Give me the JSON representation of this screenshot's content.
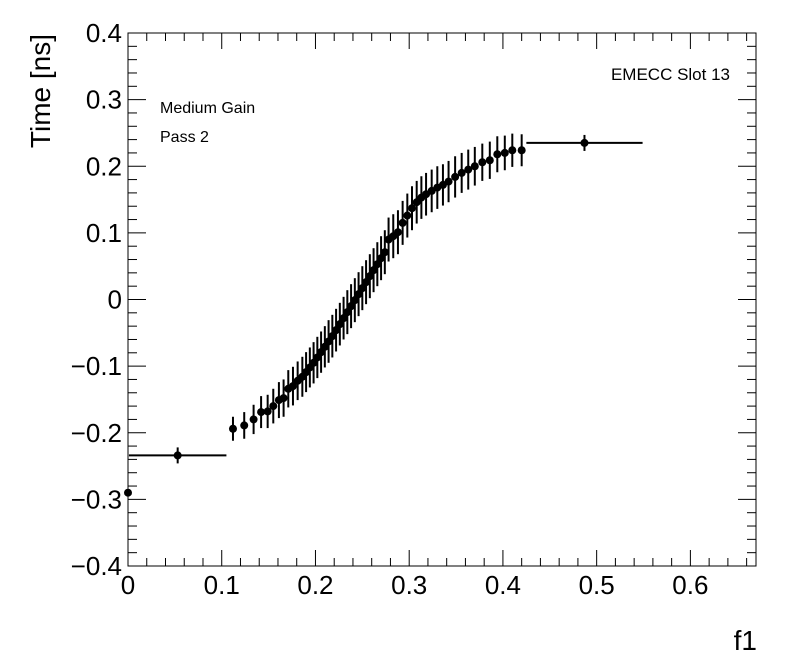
{
  "chart_data": {
    "type": "scatter",
    "title": "EMECC Slot 13",
    "xlabel": "f1",
    "ylabel": "Time [ns]",
    "xlim": [
      0,
      0.67
    ],
    "ylim": [
      -0.4,
      0.4
    ],
    "xticks": [
      0,
      0.1,
      0.2,
      0.3,
      0.4,
      0.5,
      0.6
    ],
    "xtick_labels": [
      "0",
      "0.1",
      "0.2",
      "0.3",
      "0.4",
      "0.5",
      "0.6"
    ],
    "yticks": [
      -0.4,
      -0.3,
      -0.2,
      -0.1,
      0,
      0.1,
      0.2,
      0.3,
      0.4
    ],
    "ytick_labels": [
      "−0.4",
      "−0.3",
      "−0.2",
      "−0.1",
      "0",
      "0.1",
      "0.2",
      "0.3",
      "0.4"
    ],
    "annotations": [
      "Medium Gain",
      "Pass 2"
    ],
    "series": [
      {
        "name": "Medium Gain Pass 2",
        "points": [
          {
            "x": 0.0,
            "y": -0.29,
            "xerr": 0.0,
            "yerr": 0.0
          },
          {
            "x": 0.053,
            "y": -0.234,
            "xerr": 0.052,
            "yerr": 0.012
          },
          {
            "x": 0.112,
            "y": -0.194,
            "xerr": 0.0,
            "yerr": 0.018
          },
          {
            "x": 0.124,
            "y": -0.189,
            "xerr": 0.0,
            "yerr": 0.02
          },
          {
            "x": 0.134,
            "y": -0.18,
            "xerr": 0.0,
            "yerr": 0.022
          },
          {
            "x": 0.142,
            "y": -0.169,
            "xerr": 0.0,
            "yerr": 0.024
          },
          {
            "x": 0.149,
            "y": -0.168,
            "xerr": 0.0,
            "yerr": 0.025
          },
          {
            "x": 0.155,
            "y": -0.16,
            "xerr": 0.0,
            "yerr": 0.026
          },
          {
            "x": 0.161,
            "y": -0.151,
            "xerr": 0.0,
            "yerr": 0.027
          },
          {
            "x": 0.166,
            "y": -0.148,
            "xerr": 0.0,
            "yerr": 0.028
          },
          {
            "x": 0.171,
            "y": -0.134,
            "xerr": 0.0,
            "yerr": 0.028
          },
          {
            "x": 0.176,
            "y": -0.13,
            "xerr": 0.0,
            "yerr": 0.029
          },
          {
            "x": 0.181,
            "y": -0.122,
            "xerr": 0.0,
            "yerr": 0.029
          },
          {
            "x": 0.186,
            "y": -0.116,
            "xerr": 0.0,
            "yerr": 0.03
          },
          {
            "x": 0.19,
            "y": -0.109,
            "xerr": 0.0,
            "yerr": 0.03
          },
          {
            "x": 0.194,
            "y": -0.102,
            "xerr": 0.0,
            "yerr": 0.03
          },
          {
            "x": 0.198,
            "y": -0.095,
            "xerr": 0.0,
            "yerr": 0.031
          },
          {
            "x": 0.202,
            "y": -0.087,
            "xerr": 0.0,
            "yerr": 0.031
          },
          {
            "x": 0.206,
            "y": -0.079,
            "xerr": 0.0,
            "yerr": 0.031
          },
          {
            "x": 0.21,
            "y": -0.071,
            "xerr": 0.0,
            "yerr": 0.031
          },
          {
            "x": 0.214,
            "y": -0.063,
            "xerr": 0.0,
            "yerr": 0.032
          },
          {
            "x": 0.218,
            "y": -0.055,
            "xerr": 0.0,
            "yerr": 0.032
          },
          {
            "x": 0.222,
            "y": -0.046,
            "xerr": 0.0,
            "yerr": 0.032
          },
          {
            "x": 0.226,
            "y": -0.037,
            "xerr": 0.0,
            "yerr": 0.032
          },
          {
            "x": 0.23,
            "y": -0.028,
            "xerr": 0.0,
            "yerr": 0.032
          },
          {
            "x": 0.234,
            "y": -0.019,
            "xerr": 0.0,
            "yerr": 0.033
          },
          {
            "x": 0.238,
            "y": -0.01,
            "xerr": 0.0,
            "yerr": 0.033
          },
          {
            "x": 0.242,
            "y": -0.001,
            "xerr": 0.0,
            "yerr": 0.033
          },
          {
            "x": 0.246,
            "y": 0.008,
            "xerr": 0.0,
            "yerr": 0.033
          },
          {
            "x": 0.25,
            "y": 0.017,
            "xerr": 0.0,
            "yerr": 0.033
          },
          {
            "x": 0.254,
            "y": 0.026,
            "xerr": 0.0,
            "yerr": 0.033
          },
          {
            "x": 0.258,
            "y": 0.035,
            "xerr": 0.0,
            "yerr": 0.033
          },
          {
            "x": 0.262,
            "y": 0.044,
            "xerr": 0.0,
            "yerr": 0.033
          },
          {
            "x": 0.266,
            "y": 0.053,
            "xerr": 0.0,
            "yerr": 0.033
          },
          {
            "x": 0.27,
            "y": 0.062,
            "xerr": 0.0,
            "yerr": 0.033
          },
          {
            "x": 0.274,
            "y": 0.071,
            "xerr": 0.0,
            "yerr": 0.033
          },
          {
            "x": 0.278,
            "y": 0.09,
            "xerr": 0.0,
            "yerr": 0.033
          },
          {
            "x": 0.283,
            "y": 0.095,
            "xerr": 0.0,
            "yerr": 0.033
          },
          {
            "x": 0.288,
            "y": 0.101,
            "xerr": 0.0,
            "yerr": 0.033
          },
          {
            "x": 0.293,
            "y": 0.115,
            "xerr": 0.0,
            "yerr": 0.033
          },
          {
            "x": 0.298,
            "y": 0.126,
            "xerr": 0.0,
            "yerr": 0.033
          },
          {
            "x": 0.303,
            "y": 0.137,
            "xerr": 0.0,
            "yerr": 0.033
          },
          {
            "x": 0.308,
            "y": 0.146,
            "xerr": 0.0,
            "yerr": 0.032
          },
          {
            "x": 0.313,
            "y": 0.153,
            "xerr": 0.0,
            "yerr": 0.032
          },
          {
            "x": 0.318,
            "y": 0.158,
            "xerr": 0.0,
            "yerr": 0.032
          },
          {
            "x": 0.324,
            "y": 0.163,
            "xerr": 0.0,
            "yerr": 0.032
          },
          {
            "x": 0.33,
            "y": 0.168,
            "xerr": 0.0,
            "yerr": 0.032
          },
          {
            "x": 0.336,
            "y": 0.172,
            "xerr": 0.0,
            "yerr": 0.031
          },
          {
            "x": 0.342,
            "y": 0.177,
            "xerr": 0.0,
            "yerr": 0.031
          },
          {
            "x": 0.349,
            "y": 0.184,
            "xerr": 0.0,
            "yerr": 0.031
          },
          {
            "x": 0.356,
            "y": 0.19,
            "xerr": 0.0,
            "yerr": 0.03
          },
          {
            "x": 0.363,
            "y": 0.195,
            "xerr": 0.0,
            "yerr": 0.03
          },
          {
            "x": 0.37,
            "y": 0.2,
            "xerr": 0.0,
            "yerr": 0.029
          },
          {
            "x": 0.378,
            "y": 0.206,
            "xerr": 0.0,
            "yerr": 0.028
          },
          {
            "x": 0.386,
            "y": 0.209,
            "xerr": 0.0,
            "yerr": 0.028
          },
          {
            "x": 0.394,
            "y": 0.218,
            "xerr": 0.0,
            "yerr": 0.027
          },
          {
            "x": 0.402,
            "y": 0.22,
            "xerr": 0.0,
            "yerr": 0.026
          },
          {
            "x": 0.41,
            "y": 0.224,
            "xerr": 0.0,
            "yerr": 0.025
          },
          {
            "x": 0.42,
            "y": 0.224,
            "xerr": 0.0,
            "yerr": 0.024
          },
          {
            "x": 0.487,
            "y": 0.235,
            "xerr": 0.062,
            "yerr": 0.012
          }
        ]
      }
    ]
  }
}
